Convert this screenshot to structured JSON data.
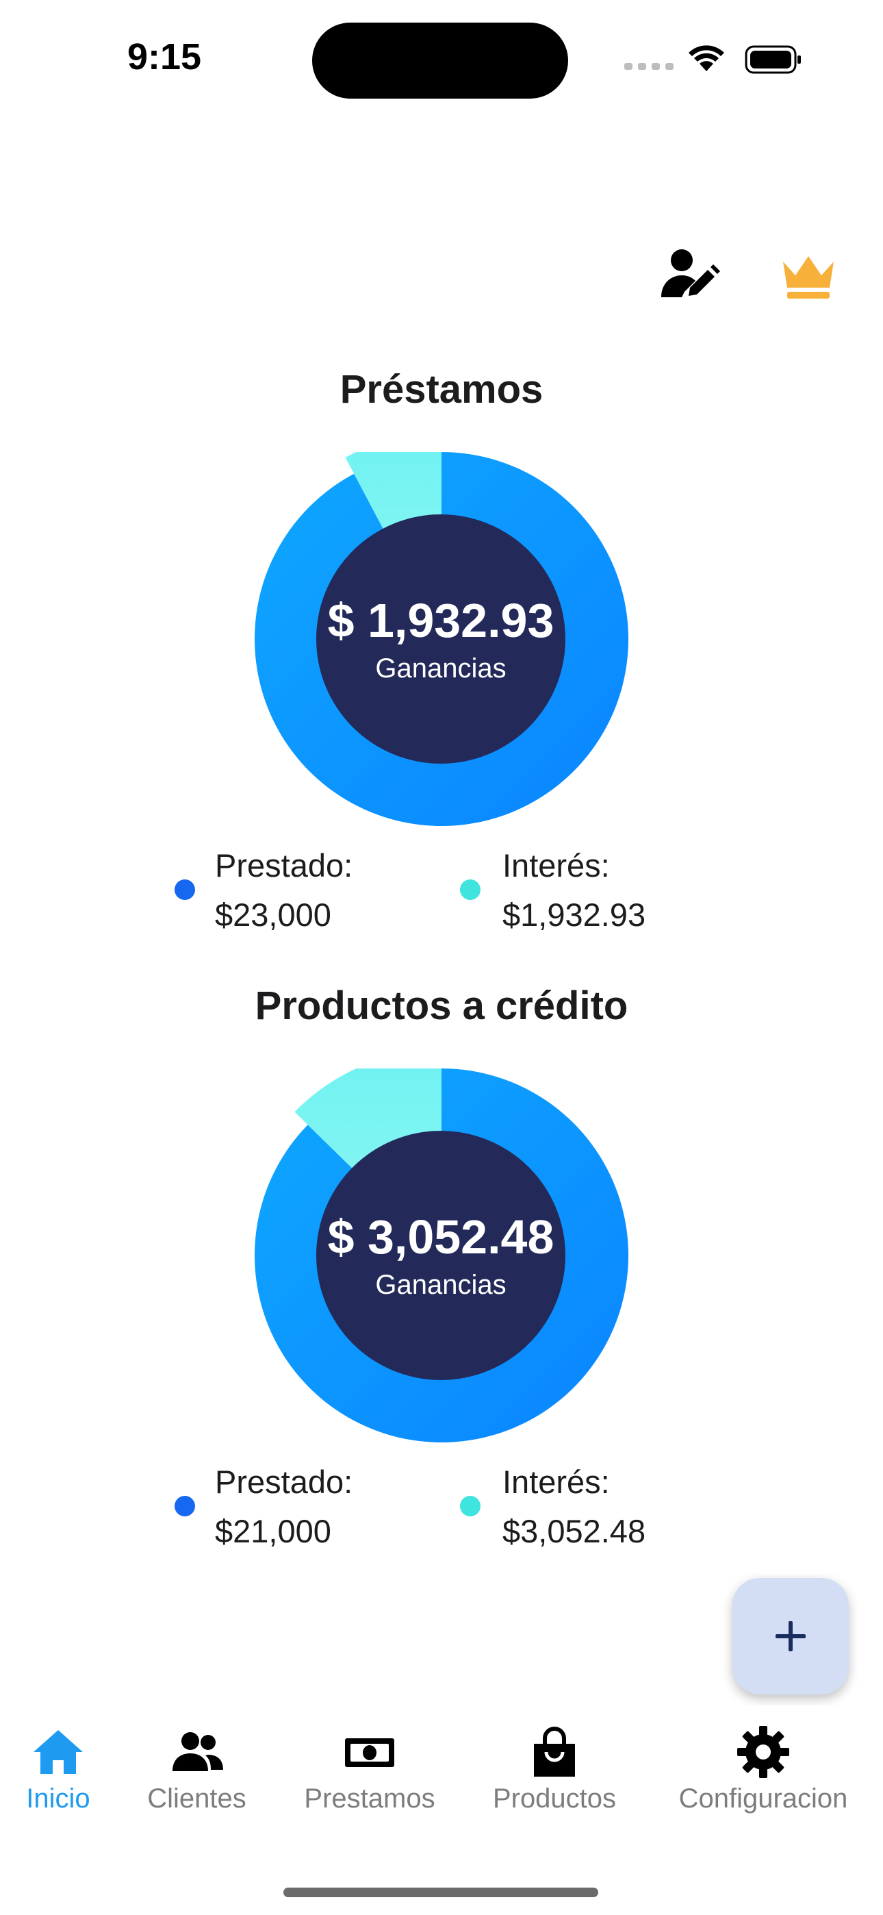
{
  "status_bar": {
    "time": "9:15"
  },
  "colors": {
    "accent": "#1e9bf0",
    "donut_ring": "#0a97ff",
    "donut_slice": "#7ff4f2",
    "donut_center": "#232a5a",
    "prestado_dot": "#1668f0",
    "interes_dot": "#3fe4df",
    "crown": "#f7b03a"
  },
  "header": {
    "edit_icon": "user-edit-icon",
    "premium_icon": "crown-icon"
  },
  "sections": [
    {
      "title": "Préstamos",
      "center_value": "$ 1,932.93",
      "center_label": "Ganancias",
      "prestado_label": "Prestado:",
      "prestado_value": "$23,000",
      "interes_label": "Interés:",
      "interes_value": "$1,932.93"
    },
    {
      "title": "Productos a crédito",
      "center_value": "$ 3,052.48",
      "center_label": "Ganancias",
      "prestado_label": "Prestado:",
      "prestado_value": "$21,000",
      "interes_label": "Interés:",
      "interes_value": "$3,052.48"
    }
  ],
  "chart_data": [
    {
      "type": "pie",
      "title": "Préstamos",
      "categories": [
        "Prestado",
        "Interés"
      ],
      "values": [
        23000,
        1932.93
      ]
    },
    {
      "type": "pie",
      "title": "Productos a crédito",
      "categories": [
        "Prestado",
        "Interés"
      ],
      "values": [
        21000,
        3052.48
      ]
    }
  ],
  "fab": {
    "icon": "plus-icon"
  },
  "tabs": [
    {
      "label": "Inicio",
      "icon": "home-icon",
      "active": true
    },
    {
      "label": "Clientes",
      "icon": "people-icon",
      "active": false
    },
    {
      "label": "Prestamos",
      "icon": "cash-icon",
      "active": false
    },
    {
      "label": "Productos",
      "icon": "shopping-bag-icon",
      "active": false
    },
    {
      "label": "Configuracion",
      "icon": "gear-icon",
      "active": false
    }
  ]
}
